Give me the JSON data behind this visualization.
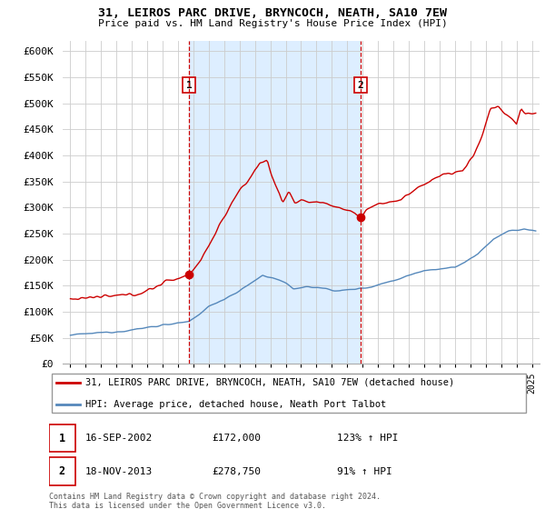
{
  "title": "31, LEIROS PARC DRIVE, BRYNCOCH, NEATH, SA10 7EW",
  "subtitle": "Price paid vs. HM Land Registry's House Price Index (HPI)",
  "legend_line1": "31, LEIROS PARC DRIVE, BRYNCOCH, NEATH, SA10 7EW (detached house)",
  "legend_line2": "HPI: Average price, detached house, Neath Port Talbot",
  "footnote": "Contains HM Land Registry data © Crown copyright and database right 2024.\nThis data is licensed under the Open Government Licence v3.0.",
  "sale1_date": "16-SEP-2002",
  "sale1_price": "£172,000",
  "sale1_hpi": "123% ↑ HPI",
  "sale2_date": "18-NOV-2013",
  "sale2_price": "£278,750",
  "sale2_hpi": "91% ↑ HPI",
  "red_color": "#cc0000",
  "blue_color": "#5588bb",
  "shade_color": "#ddeeff",
  "grid_color": "#cccccc",
  "ylim": [
    0,
    620000
  ],
  "yticks": [
    0,
    50000,
    100000,
    150000,
    200000,
    250000,
    300000,
    350000,
    400000,
    450000,
    500000,
    550000,
    600000
  ],
  "sale1_x": 2002.708,
  "sale2_x": 2013.875
}
